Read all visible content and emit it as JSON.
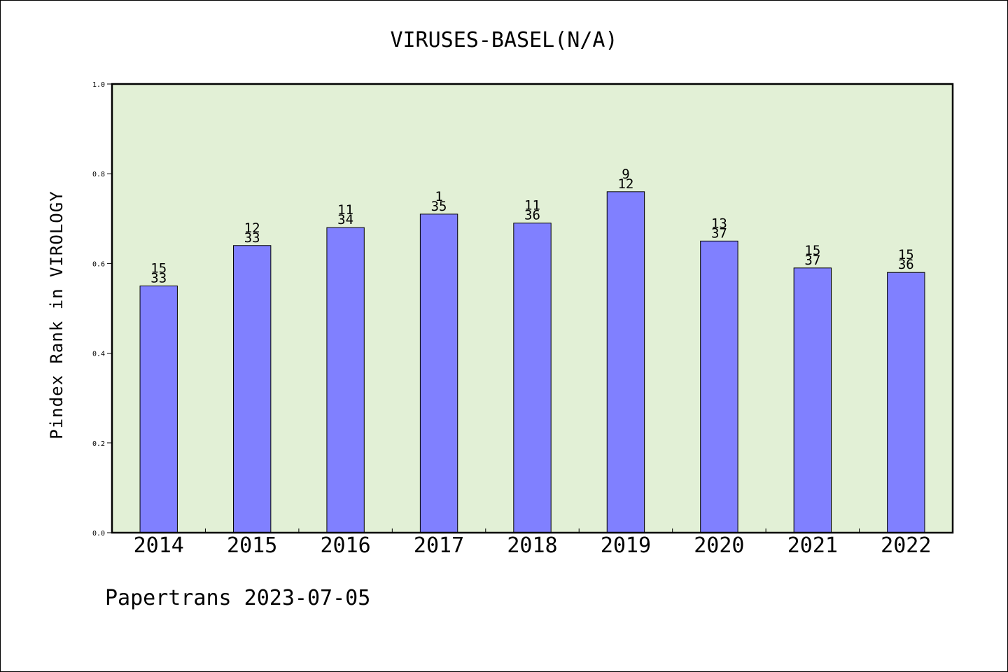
{
  "chart_data": {
    "type": "bar",
    "title": "VIRUSES-BASEL(N/A)",
    "xlabel": "",
    "ylabel": "Pindex Rank in VIROLOGY",
    "ylim": [
      0,
      1.0
    ],
    "yticks": [
      "0.0",
      "0.2",
      "0.4",
      "0.6",
      "0.8",
      "1.0"
    ],
    "categories": [
      "2014",
      "2015",
      "2016",
      "2017",
      "2018",
      "2019",
      "2020",
      "2021",
      "2022"
    ],
    "values": [
      0.55,
      0.64,
      0.68,
      0.71,
      0.69,
      0.76,
      0.65,
      0.59,
      0.58
    ],
    "labels_top": [
      "15",
      "12",
      "11",
      "1",
      "11",
      "9",
      "13",
      "15",
      "15"
    ],
    "labels_bottom": [
      "33",
      "33",
      "34",
      "35",
      "36",
      "12",
      "37",
      "37",
      "36"
    ],
    "grid": false,
    "colors": {
      "bar": "#8080ff",
      "plot_background": "#e2f0d6"
    }
  },
  "footer": "Papertrans 2023-07-05"
}
